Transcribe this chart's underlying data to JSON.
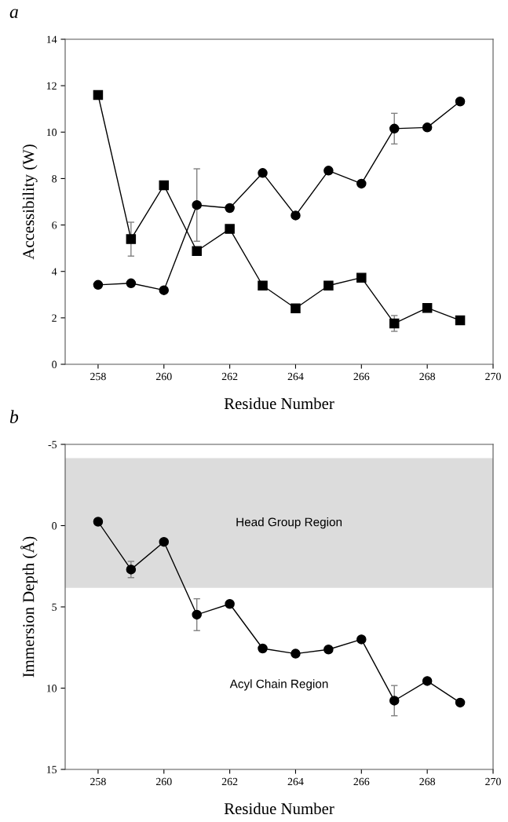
{
  "chart_data": [
    {
      "type": "line",
      "title": "a",
      "xlabel": "Residue Number",
      "ylabel": "Accessibility (W)",
      "x": [
        258,
        259,
        260,
        261,
        262,
        263,
        264,
        265,
        266,
        267,
        268,
        269
      ],
      "series": [
        {
          "color": "#000000",
          "marker": "circle",
          "values": [
            3.42,
            3.49,
            3.19,
            6.86,
            6.73,
            8.24,
            6.41,
            8.34,
            7.78,
            10.15,
            10.2,
            11.32
          ],
          "errors": [
            null,
            null,
            null,
            1.56,
            null,
            null,
            null,
            null,
            null,
            0.66,
            null,
            null
          ]
        },
        {
          "color": "#000000",
          "marker": "square",
          "values": [
            11.6,
            5.39,
            7.71,
            4.88,
            5.83,
            3.39,
            2.41,
            3.39,
            3.73,
            1.76,
            2.43,
            1.89
          ],
          "errors": [
            null,
            0.73,
            null,
            null,
            null,
            null,
            null,
            null,
            null,
            0.34,
            null,
            null
          ]
        }
      ],
      "xlim": [
        257,
        270
      ],
      "xticks": [
        258,
        260,
        262,
        264,
        266,
        268,
        270
      ],
      "ylim": [
        0,
        14
      ],
      "yticks": [
        0,
        2,
        4,
        6,
        8,
        10,
        12,
        14
      ],
      "grid": false,
      "legend": false,
      "line_style": "solid"
    },
    {
      "type": "line",
      "title": "b",
      "xlabel": "Residue Number",
      "ylabel": "Immersion Depth (Å)",
      "x": [
        258,
        259,
        260,
        261,
        262,
        263,
        264,
        265,
        266,
        267,
        268,
        269
      ],
      "series": [
        {
          "color": "#000000",
          "marker": "circle",
          "values": [
            -0.24,
            2.7,
            1.0,
            5.48,
            4.82,
            7.56,
            7.88,
            7.62,
            7.0,
            10.77,
            9.56,
            10.89
          ],
          "errors": [
            null,
            0.5,
            null,
            0.98,
            null,
            null,
            null,
            null,
            null,
            0.93,
            null,
            null
          ]
        }
      ],
      "bands": [
        {
          "axis": "y",
          "from": -4.15,
          "to": 3.83,
          "label": "Head Group Region",
          "color": "#dcdcdc"
        }
      ],
      "annotations": [
        "Acyl Chain Region"
      ],
      "xlim": [
        257,
        270
      ],
      "xticks": [
        258,
        260,
        262,
        264,
        266,
        268,
        270
      ],
      "ylim": [
        15,
        -5
      ],
      "yticks": [
        {
          "value": -5,
          "label": "-5"
        },
        0,
        5,
        10,
        15
      ],
      "grid": false,
      "legend": false,
      "line_style": "solid"
    }
  ]
}
